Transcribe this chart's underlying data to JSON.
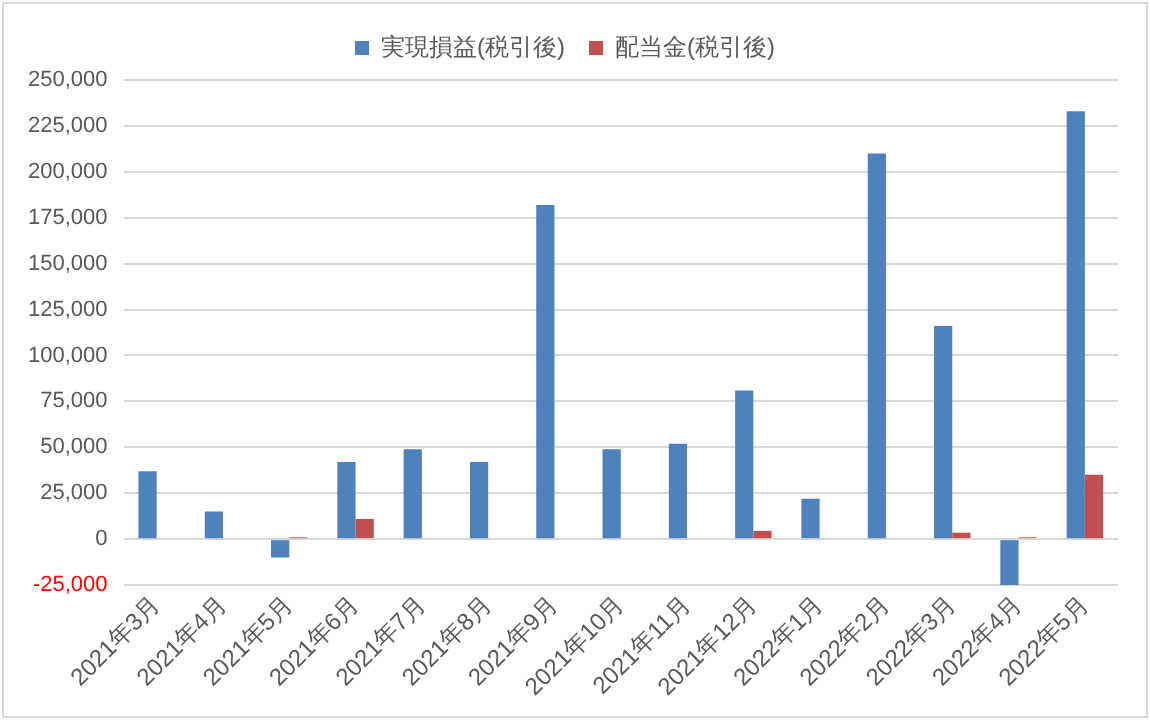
{
  "chart_data": {
    "type": "bar",
    "categories": [
      "2021年3月",
      "2021年4月",
      "2021年5月",
      "2021年6月",
      "2021年7月",
      "2021年8月",
      "2021年9月",
      "2021年10月",
      "2021年11月",
      "2021年12月",
      "2022年1月",
      "2022年2月",
      "2022年3月",
      "2022年4月",
      "2022年5月"
    ],
    "series": [
      {
        "name": "実現損益(税引後)",
        "color": "#4f81bd",
        "values": [
          37000,
          15000,
          -10000,
          42000,
          49000,
          42000,
          182000,
          49000,
          52000,
          81000,
          22000,
          210000,
          116000,
          -25000,
          233000
        ]
      },
      {
        "name": "配当金(税引後)",
        "color": "#c0504d",
        "values": [
          null,
          null,
          1000,
          11000,
          null,
          null,
          null,
          null,
          null,
          4500,
          null,
          null,
          3500,
          1000,
          35000
        ]
      }
    ],
    "ylim": [
      -25000,
      250000
    ],
    "yticks": [
      {
        "value": -25000,
        "label": "-25,000"
      },
      {
        "value": 0,
        "label": "0"
      },
      {
        "value": 25000,
        "label": "25,000"
      },
      {
        "value": 50000,
        "label": "50,000"
      },
      {
        "value": 75000,
        "label": "75,000"
      },
      {
        "value": 100000,
        "label": "100,000"
      },
      {
        "value": 125000,
        "label": "125,000"
      },
      {
        "value": 150000,
        "label": "150,000"
      },
      {
        "value": 175000,
        "label": "175,000"
      },
      {
        "value": 200000,
        "label": "200,000"
      },
      {
        "value": 225000,
        "label": "225,000"
      },
      {
        "value": 250000,
        "label": "250,000"
      }
    ],
    "grid": "y",
    "legend": "top"
  }
}
